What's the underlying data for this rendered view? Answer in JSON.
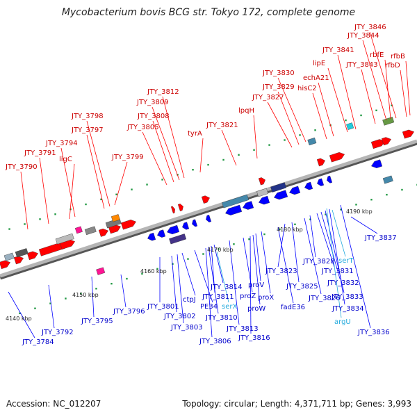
{
  "title": "Mycobacterium bovis BCG str. Tokyo 172, complete genome",
  "footer": {
    "accession": "Accession: NC_012207",
    "stats": "Topology: circular; Length: 4,371,711 bp; Genes: 3,993"
  },
  "colors": {
    "forward": "#ff0000",
    "reverse": "#0000ff",
    "trna": "#22aadd",
    "backbone": "#999999"
  },
  "ticks": [
    "4140 kbp",
    "4150 kbp",
    "4160 kbp",
    "4170 kbp",
    "4180 kbp",
    "4190 kbp"
  ],
  "forward_labels": [
    "JTY_3790",
    "JTY_3791",
    "ligC",
    "JTY_3794",
    "JTY_3797",
    "JTY_3798",
    "JTY_3799",
    "JTY_3805",
    "JTY_3808",
    "JTY_3809",
    "JTY_3812",
    "tyrA",
    "JTY_3821",
    "lpqH",
    "JTY_3827",
    "JTY_3829",
    "JTY_3830",
    "hisC2",
    "echA21",
    "lipE",
    "JTY_3841",
    "JTY_3843",
    "JTY_3844",
    "JTY_3846",
    "rbfE",
    "rfbD",
    "rfbB"
  ],
  "reverse_labels": [
    "JTY_3784",
    "JTY_3792",
    "JTY_3795",
    "JTY_3796",
    "JTY_3801",
    "JTY_3802",
    "JTY_3803",
    "ctpJ",
    "PE34",
    "JTY_3806",
    "JTY_3810",
    "JTY_3811",
    "JTY_3813",
    "JTY_3814",
    "proZ",
    "JTY_3816",
    "proW",
    "proV",
    "proX",
    "fadE36",
    "JTY_3823",
    "JTY_3825",
    "JTY_3826",
    "JTY_3828",
    "JTY_3831",
    "JTY_3832",
    "JTY_3833",
    "JTY_3834",
    "JTY_3836",
    "JTY_3837"
  ],
  "trna_labels": [
    "serX",
    "serT",
    "argU"
  ]
}
